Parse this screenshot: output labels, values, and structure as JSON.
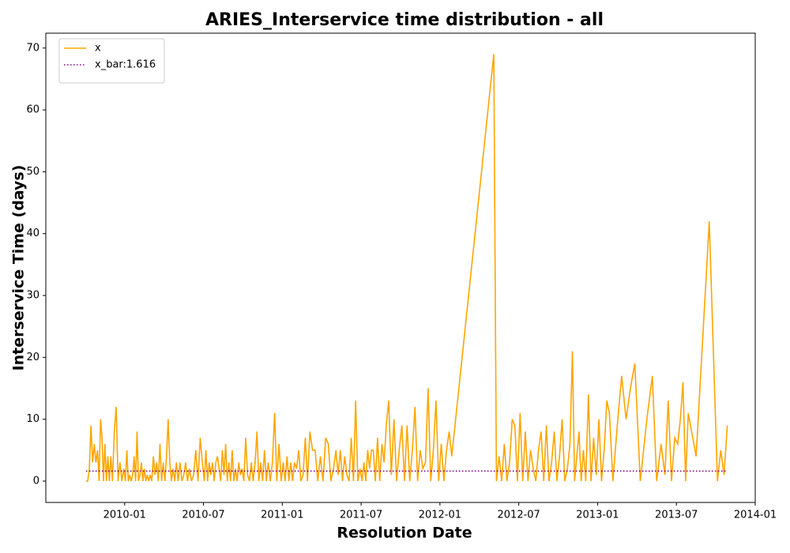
{
  "chart_data": {
    "type": "line",
    "title": "ARIES_Interservice time distribution - all",
    "x_label": "Resolution Date",
    "y_label": "Interservice Time (days)",
    "xlim": [
      "2009-07",
      "2014-01"
    ],
    "xticks": [
      "2010-01",
      "2010-07",
      "2011-01",
      "2011-07",
      "2012-01",
      "2012-07",
      "2013-01",
      "2013-07",
      "2014-01"
    ],
    "ylim": [
      -3.45,
      72.4
    ],
    "yticks": [
      0,
      10,
      20,
      30,
      40,
      50,
      60,
      70
    ],
    "legend": "upper left",
    "series": [
      {
        "name": "x",
        "color": "#ffa500",
        "x": [
          "2009-10",
          "2009-10",
          "2009-10",
          "2009-10",
          "2009-10",
          "2009-10",
          "2009-10",
          "2009-10",
          "2009-11",
          "2009-11",
          "2009-11",
          "2009-11",
          "2009-11",
          "2009-11",
          "2009-11",
          "2009-11",
          "2009-11",
          "2009-12",
          "2009-12",
          "2009-12",
          "2009-12",
          "2009-12",
          "2009-12",
          "2009-12",
          "2010-01",
          "2010-01",
          "2010-01",
          "2010-01",
          "2010-01",
          "2010-01",
          "2010-01",
          "2010-01",
          "2010-01",
          "2010-02",
          "2010-02",
          "2010-02",
          "2010-02",
          "2010-02",
          "2010-02",
          "2010-02",
          "2010-02",
          "2010-02",
          "2010-03",
          "2010-03",
          "2010-03",
          "2010-03",
          "2010-03",
          "2010-03",
          "2010-03",
          "2010-03",
          "2010-04",
          "2010-04",
          "2010-04",
          "2010-04",
          "2010-04",
          "2010-04",
          "2010-04",
          "2010-04",
          "2010-05",
          "2010-05",
          "2010-05",
          "2010-05",
          "2010-05",
          "2010-05",
          "2010-05",
          "2010-06",
          "2010-06",
          "2010-06",
          "2010-06",
          "2010-06",
          "2010-06",
          "2010-07",
          "2010-07",
          "2010-07",
          "2010-07",
          "2010-07",
          "2010-07",
          "2010-07",
          "2010-07",
          "2010-08",
          "2010-08",
          "2010-08",
          "2010-08",
          "2010-08",
          "2010-08",
          "2010-08",
          "2010-08",
          "2010-09",
          "2010-09",
          "2010-09",
          "2010-09",
          "2010-09",
          "2010-09",
          "2010-09",
          "2010-09",
          "2010-10",
          "2010-10",
          "2010-10",
          "2010-10",
          "2010-10",
          "2010-10",
          "2010-10",
          "2010-11",
          "2010-11",
          "2010-11",
          "2010-11",
          "2010-11",
          "2010-11",
          "2010-11",
          "2010-12",
          "2010-12",
          "2010-12",
          "2010-12",
          "2010-12",
          "2010-12",
          "2011-01",
          "2011-01",
          "2011-01",
          "2011-01",
          "2011-01",
          "2011-01",
          "2011-01",
          "2011-02",
          "2011-02",
          "2011-02",
          "2011-02",
          "2011-02",
          "2011-02",
          "2011-03",
          "2011-03",
          "2011-03",
          "2011-03",
          "2011-03",
          "2011-04",
          "2011-04",
          "2011-04",
          "2011-04",
          "2011-04",
          "2011-05",
          "2011-05",
          "2011-05",
          "2011-05",
          "2011-05",
          "2011-05",
          "2011-06",
          "2011-06",
          "2011-06",
          "2011-06",
          "2011-06",
          "2011-06",
          "2011-07",
          "2011-07",
          "2011-07",
          "2011-07",
          "2011-07",
          "2011-07",
          "2011-07",
          "2011-08",
          "2011-08",
          "2011-08",
          "2011-08",
          "2011-08",
          "2011-08",
          "2011-09",
          "2011-09",
          "2011-09",
          "2011-09",
          "2011-09",
          "2011-10",
          "2011-10",
          "2011-10",
          "2011-10",
          "2011-10",
          "2011-11",
          "2011-11",
          "2011-11",
          "2011-11",
          "2011-11",
          "2011-12",
          "2011-12",
          "2011-12",
          "2011-12",
          "2011-12",
          "2012-01",
          "2012-01",
          "2012-01",
          "2012-01",
          "2012-01",
          "2012-05",
          "2012-05",
          "2012-05",
          "2012-05",
          "2012-05",
          "2012-06",
          "2012-06",
          "2012-06",
          "2012-06",
          "2012-06",
          "2012-07",
          "2012-07",
          "2012-07",
          "2012-07",
          "2012-07",
          "2012-08",
          "2012-08",
          "2012-08",
          "2012-08",
          "2012-08",
          "2012-09",
          "2012-09",
          "2012-09",
          "2012-09",
          "2012-09",
          "2012-10",
          "2012-10",
          "2012-10",
          "2012-10",
          "2012-10",
          "2012-11",
          "2012-11",
          "2012-11",
          "2012-11",
          "2012-11",
          "2012-11",
          "2012-12",
          "2012-12",
          "2012-12",
          "2012-12",
          "2012-12",
          "2013-01",
          "2013-01",
          "2013-01",
          "2013-01",
          "2013-01",
          "2013-02",
          "2013-02",
          "2013-02",
          "2013-03",
          "2013-03",
          "2013-03",
          "2013-04",
          "2013-04",
          "2013-05",
          "2013-05",
          "2013-05",
          "2013-06",
          "2013-06",
          "2013-06",
          "2013-06",
          "2013-07",
          "2013-07",
          "2013-07",
          "2013-07",
          "2013-07",
          "2013-08",
          "2013-09",
          "2013-10",
          "2013-10",
          "2013-10",
          "2013-10"
        ],
        "values": [
          0,
          0,
          2,
          9,
          3,
          6,
          3,
          5,
          0,
          10,
          7,
          0,
          6,
          0,
          4,
          0,
          4,
          0,
          8,
          12,
          0,
          3,
          0,
          2,
          0,
          5,
          0,
          1,
          0,
          1,
          4,
          0,
          8,
          0,
          1,
          3,
          0,
          2,
          0,
          1,
          0,
          1,
          0,
          4,
          1,
          3,
          0,
          6,
          0,
          3,
          0,
          4,
          10,
          3,
          0,
          2,
          0,
          3,
          0,
          3,
          0,
          1,
          3,
          0,
          2,
          0,
          1,
          5,
          0,
          7,
          3,
          0,
          5,
          0,
          3,
          1,
          3,
          0,
          3,
          4,
          2,
          0,
          5,
          1,
          6,
          0,
          3,
          0,
          5,
          0,
          2,
          0,
          3,
          1,
          2,
          0,
          7,
          1,
          0,
          3,
          0,
          3,
          8,
          0,
          3,
          0,
          5,
          0,
          3,
          0,
          3,
          11,
          0,
          6,
          0,
          3,
          0,
          4,
          0,
          3,
          0,
          3,
          2,
          5,
          0,
          1,
          7,
          0,
          8,
          5,
          5,
          0,
          4,
          0,
          7,
          6,
          0,
          2,
          5,
          1,
          5,
          0,
          4,
          1,
          0,
          7,
          0,
          13,
          0,
          2,
          0,
          3,
          0,
          5,
          2,
          5,
          5,
          0,
          7,
          0,
          6,
          3,
          9,
          13,
          1,
          10,
          0,
          5,
          9,
          0,
          9,
          0,
          5,
          12,
          0,
          5,
          2,
          3,
          15,
          0,
          5,
          13,
          0,
          6,
          0,
          5,
          8,
          4,
          69,
          0,
          4,
          0,
          6,
          0,
          3,
          10,
          9,
          0,
          11,
          0,
          8,
          0,
          5,
          2,
          0,
          5,
          8,
          0,
          9,
          0,
          3,
          8,
          0,
          4,
          10,
          0,
          2,
          6,
          21,
          0,
          4,
          8,
          0,
          5,
          0,
          14,
          0,
          7,
          1,
          10,
          0,
          5,
          13,
          11,
          0,
          9,
          17,
          10,
          15,
          19,
          0,
          10,
          17,
          0,
          6,
          1,
          13,
          0,
          7,
          6,
          10,
          16,
          0,
          11,
          4,
          42,
          0,
          5,
          1,
          9
        ]
      }
    ],
    "hlines": [
      {
        "name": "x_bar:1.616",
        "value": 1.616,
        "color": "#800080"
      }
    ]
  }
}
